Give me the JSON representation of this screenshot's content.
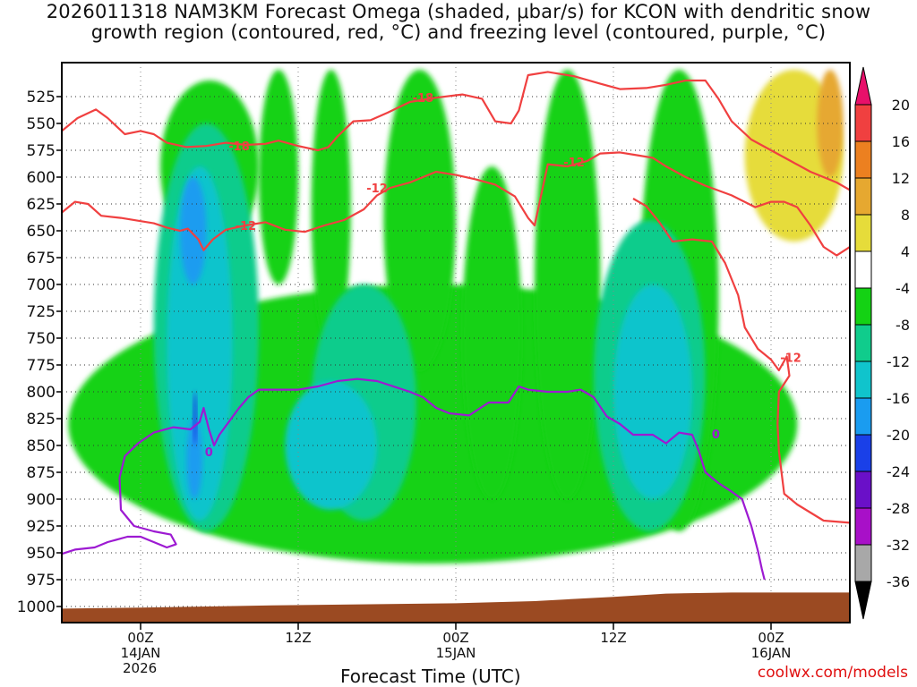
{
  "title_lines": [
    "2026011318 NAM3KM Forecast Omega (shaded, μbar/s) for KCON with dendritic snow",
    "growth region (contoured, red, °C) and freezing level (contoured, purple, °C)"
  ],
  "credit": "coolwx.com/models",
  "chart_data": {
    "type": "heatmap",
    "title": "2026011318 NAM3KM Forecast Omega (shaded, μbar/s) for KCON with dendritic snow growth region (contoured, red, °C) and freezing level (contoured, purple, °C)",
    "xlabel": "Forecast Time (UTC)",
    "ylabel": "",
    "x_unit": "hours since 2026-01-13 18Z",
    "xlim": [
      -6,
      54
    ],
    "x_ticks": [
      {
        "hour": 0,
        "lines": [
          "00Z",
          "14JAN"
        ]
      },
      {
        "hour": 12,
        "lines": [
          "12Z"
        ]
      },
      {
        "hour": 24,
        "lines": [
          "00Z",
          "15JAN"
        ]
      },
      {
        "hour": 36,
        "lines": [
          "12Z"
        ]
      },
      {
        "hour": 48,
        "lines": [
          "00Z",
          "16JAN"
        ]
      }
    ],
    "year_label": "2026",
    "y_unit": "hPa",
    "y_range": [
      1005,
      500
    ],
    "y_ticks": [
      525,
      550,
      575,
      600,
      625,
      650,
      675,
      700,
      725,
      750,
      775,
      800,
      825,
      850,
      875,
      900,
      925,
      950,
      975,
      1000
    ],
    "grid": "dotted",
    "colorbar": {
      "unit": "μbar/s",
      "labels": [
        20,
        16,
        12,
        8,
        4,
        -4,
        -8,
        -12,
        -16,
        -20,
        -24,
        -28,
        -32,
        -36
      ],
      "bins": [
        {
          "min": 20,
          "max": null,
          "color": "#e8106a"
        },
        {
          "min": 16,
          "max": 20,
          "color": "#f04040"
        },
        {
          "min": 12,
          "max": 16,
          "color": "#ec8020"
        },
        {
          "min": 8,
          "max": 12,
          "color": "#e6a830"
        },
        {
          "min": 4,
          "max": 8,
          "color": "#e6dc3a"
        },
        {
          "min": -4,
          "max": 4,
          "color": "#ffffff"
        },
        {
          "min": -8,
          "max": -4,
          "color": "#14d214"
        },
        {
          "min": -12,
          "max": -8,
          "color": "#10cc8c"
        },
        {
          "min": -16,
          "max": -12,
          "color": "#10c4cc"
        },
        {
          "min": -20,
          "max": -16,
          "color": "#1a9cf0"
        },
        {
          "min": -24,
          "max": -20,
          "color": "#1a40e8"
        },
        {
          "min": -28,
          "max": -24,
          "color": "#6a10c8"
        },
        {
          "min": -32,
          "max": -28,
          "color": "#a810c8"
        },
        {
          "min": -36,
          "max": -32,
          "color": "#a8a8a8"
        },
        {
          "min": null,
          "max": -36,
          "color": "#000000"
        }
      ]
    },
    "omega_regions": [
      {
        "value_range": [
          -8,
          -4
        ],
        "x": [
          1.5,
          9
        ],
        "p": [
          510,
          670
        ],
        "description_level": "green"
      },
      {
        "value_range": [
          -8,
          -4
        ],
        "x": [
          -5.5,
          50
        ],
        "p": [
          700,
          960
        ]
      },
      {
        "value_range": [
          -8,
          -4
        ],
        "x": [
          9,
          12
        ],
        "p": [
          500,
          700
        ]
      },
      {
        "value_range": [
          -8,
          -4
        ],
        "x": [
          13,
          16
        ],
        "p": [
          500,
          760
        ]
      },
      {
        "value_range": [
          -8,
          -4
        ],
        "x": [
          18.5,
          24
        ],
        "p": [
          500,
          780
        ]
      },
      {
        "value_range": [
          -8,
          -4
        ],
        "x": [
          24.5,
          29
        ],
        "p": [
          590,
          900
        ]
      },
      {
        "value_range": [
          -8,
          -4
        ],
        "x": [
          30,
          35
        ],
        "p": [
          500,
          900
        ]
      },
      {
        "value_range": [
          -8,
          -4
        ],
        "x": [
          38,
          44
        ],
        "p": [
          500,
          930
        ]
      },
      {
        "value_range": [
          -12,
          -8
        ],
        "x": [
          1,
          9
        ],
        "p": [
          550,
          930
        ]
      },
      {
        "value_range": [
          -12,
          -8
        ],
        "x": [
          13,
          21
        ],
        "p": [
          700,
          920
        ]
      },
      {
        "value_range": [
          -12,
          -8
        ],
        "x": [
          34.5,
          43
        ],
        "p": [
          640,
          930
        ]
      },
      {
        "value_range": [
          -16,
          -12
        ],
        "x": [
          2,
          7
        ],
        "p": [
          590,
          920
        ]
      },
      {
        "value_range": [
          -16,
          -12
        ],
        "x": [
          11,
          18
        ],
        "p": [
          790,
          910
        ]
      },
      {
        "value_range": [
          -16,
          -12
        ],
        "x": [
          36,
          42
        ],
        "p": [
          700,
          900
        ]
      },
      {
        "value_range": [
          -20,
          -16
        ],
        "x": [
          3,
          5
        ],
        "p": [
          600,
          700
        ]
      },
      {
        "value_range": [
          -20,
          -16
        ],
        "x": [
          3.5,
          4.7
        ],
        "p": [
          825,
          900
        ]
      },
      {
        "value_range": [
          -24,
          -20
        ],
        "x": [
          4.0,
          4.3
        ],
        "p": [
          800,
          850
        ]
      },
      {
        "value_range": [
          4,
          8
        ],
        "x": [
          46,
          53.5
        ],
        "p": [
          500,
          660
        ]
      },
      {
        "value_range": [
          8,
          12
        ],
        "x": [
          51.5,
          53.5
        ],
        "p": [
          500,
          600
        ]
      }
    ],
    "series": [
      {
        "name": "-18",
        "color": "#f04040",
        "points": [
          [
            -6,
            557
          ],
          [
            -4.8,
            545
          ],
          [
            -3.4,
            537
          ],
          [
            -2.5,
            545
          ],
          [
            -1.2,
            560
          ],
          [
            0,
            557
          ],
          [
            1,
            560
          ],
          [
            2,
            568
          ],
          [
            3.5,
            572
          ],
          [
            5,
            571
          ],
          [
            6.5,
            568
          ],
          [
            8,
            570
          ],
          [
            9.5,
            569
          ],
          [
            10.5,
            566
          ],
          [
            12,
            571
          ],
          [
            13.5,
            575
          ],
          [
            14.3,
            572
          ],
          [
            15,
            562
          ],
          [
            16.2,
            548
          ],
          [
            17.5,
            547
          ],
          [
            18.8,
            540
          ],
          [
            20.5,
            530
          ],
          [
            22.5,
            526
          ],
          [
            24.5,
            523
          ],
          [
            26,
            527
          ],
          [
            27,
            548
          ],
          [
            28.2,
            550
          ],
          [
            28.8,
            538
          ],
          [
            29.5,
            505
          ],
          [
            31,
            502
          ],
          [
            33,
            506
          ],
          [
            35,
            513
          ],
          [
            36.5,
            518
          ],
          [
            38.5,
            517
          ],
          [
            40,
            514
          ],
          [
            41.5,
            510
          ],
          [
            43,
            510
          ],
          [
            44,
            527
          ],
          [
            45,
            548
          ],
          [
            46.5,
            565
          ],
          [
            48,
            575
          ],
          [
            49.5,
            585
          ],
          [
            51,
            595
          ],
          [
            52,
            600
          ],
          [
            53,
            605
          ],
          [
            54,
            612
          ]
        ]
      },
      {
        "name": "-12",
        "color": "#f04040",
        "points": [
          [
            -6,
            633
          ],
          [
            -5,
            623
          ],
          [
            -4,
            625
          ],
          [
            -3,
            636
          ],
          [
            -1.5,
            638
          ],
          [
            0,
            641
          ],
          [
            1,
            643
          ],
          [
            2,
            647
          ],
          [
            3,
            650
          ],
          [
            3.6,
            648
          ],
          [
            4.4,
            658
          ],
          [
            4.8,
            668
          ],
          [
            5.5,
            658
          ],
          [
            6.5,
            649
          ],
          [
            8,
            645
          ],
          [
            9.5,
            642
          ],
          [
            11,
            649
          ],
          [
            12.5,
            651
          ],
          [
            14,
            645
          ],
          [
            15.5,
            640
          ],
          [
            17,
            630
          ],
          [
            18,
            617
          ],
          [
            19,
            610
          ],
          [
            20.5,
            605
          ],
          [
            22.5,
            595
          ],
          [
            24,
            598
          ],
          [
            25.5,
            602
          ],
          [
            27,
            607
          ],
          [
            28.5,
            618
          ],
          [
            29.5,
            638
          ],
          [
            30,
            645
          ],
          [
            31,
            588
          ],
          [
            32.5,
            590
          ],
          [
            34,
            585
          ],
          [
            35,
            578
          ],
          [
            36.5,
            577
          ],
          [
            38,
            580
          ],
          [
            39,
            582
          ],
          [
            40,
            590
          ],
          [
            41.5,
            600
          ],
          [
            43,
            608
          ],
          [
            45,
            617
          ],
          [
            46.8,
            628
          ],
          [
            48,
            623
          ],
          [
            49,
            623
          ],
          [
            50,
            628
          ],
          [
            51,
            645
          ],
          [
            52,
            665
          ],
          [
            53,
            673
          ],
          [
            54,
            665
          ]
        ]
      },
      {
        "name": "-12",
        "color": "#f04040",
        "points": [
          [
            37.5,
            620
          ],
          [
            38.5,
            627
          ],
          [
            39.5,
            642
          ],
          [
            40.5,
            660
          ],
          [
            42,
            658
          ],
          [
            43.5,
            660
          ],
          [
            44.5,
            680
          ],
          [
            45.5,
            710
          ],
          [
            46,
            740
          ],
          [
            47,
            760
          ],
          [
            48,
            770
          ],
          [
            48.6,
            780
          ],
          [
            49.2,
            767
          ],
          [
            49.4,
            785
          ],
          [
            48.6,
            800
          ],
          [
            48.5,
            830
          ],
          [
            48.6,
            855
          ],
          [
            48.8,
            875
          ],
          [
            49,
            895
          ],
          [
            50,
            905
          ],
          [
            52,
            920
          ],
          [
            54,
            922
          ]
        ]
      },
      {
        "name": "0",
        "color": "#9d1ad2",
        "points": [
          [
            -6,
            951
          ],
          [
            -5,
            947
          ],
          [
            -3.5,
            945
          ],
          [
            -2.5,
            940
          ],
          [
            -1,
            935
          ],
          [
            0,
            935
          ],
          [
            1,
            940
          ],
          [
            2,
            945
          ],
          [
            2.7,
            942
          ],
          [
            2.3,
            933
          ],
          [
            1,
            930
          ],
          [
            -0.5,
            925
          ],
          [
            -1.5,
            910
          ],
          [
            -1.6,
            880
          ],
          [
            -1.2,
            860
          ],
          [
            -0.2,
            848
          ],
          [
            1,
            838
          ],
          [
            2.5,
            833
          ],
          [
            3.8,
            835
          ],
          [
            4.5,
            828
          ],
          [
            4.8,
            815
          ],
          [
            5.2,
            835
          ],
          [
            5.6,
            850
          ],
          [
            6,
            840
          ],
          [
            6.6,
            830
          ],
          [
            7.5,
            815
          ],
          [
            8.2,
            805
          ],
          [
            9,
            798
          ],
          [
            10.5,
            798
          ],
          [
            12,
            798
          ],
          [
            13.5,
            795
          ],
          [
            15,
            790
          ],
          [
            16.5,
            788
          ],
          [
            18,
            790
          ],
          [
            19.5,
            796
          ],
          [
            20.5,
            800
          ],
          [
            21.5,
            805
          ],
          [
            22.5,
            815
          ],
          [
            23.5,
            820
          ],
          [
            25,
            822
          ],
          [
            26.5,
            810
          ],
          [
            28,
            810
          ],
          [
            28.8,
            795
          ],
          [
            29.5,
            798
          ],
          [
            31,
            800
          ],
          [
            32.5,
            800
          ],
          [
            33.5,
            798
          ],
          [
            34.5,
            805
          ],
          [
            35.5,
            823
          ],
          [
            36.5,
            830
          ],
          [
            37.5,
            840
          ],
          [
            39,
            840
          ],
          [
            40,
            848
          ],
          [
            41,
            838
          ],
          [
            42,
            840
          ],
          [
            42.5,
            855
          ],
          [
            43,
            875
          ],
          [
            44,
            885
          ],
          [
            45,
            893
          ],
          [
            45.8,
            900
          ],
          [
            46.5,
            925
          ],
          [
            47,
            948
          ],
          [
            47.3,
            965
          ],
          [
            47.5,
            975
          ]
        ]
      }
    ],
    "contour_labels": [
      {
        "text": "-18",
        "x": 21.5,
        "p": 526
      },
      {
        "text": "-18",
        "x": 7.5,
        "p": 571
      },
      {
        "text": "-12",
        "x": 8.0,
        "p": 645
      },
      {
        "text": "-12",
        "x": 18.0,
        "p": 610
      },
      {
        "text": "-12",
        "x": 33.0,
        "p": 586
      },
      {
        "text": "-12",
        "x": 49.5,
        "p": 768
      },
      {
        "text": "0",
        "x": 5.2,
        "p": 856
      },
      {
        "text": "0",
        "x": 43.8,
        "p": 839
      }
    ],
    "terrain": {
      "color": "#9b4a22",
      "points": [
        [
          -6,
          1002
        ],
        [
          0,
          1001
        ],
        [
          10,
          999
        ],
        [
          24,
          997
        ],
        [
          30,
          995
        ],
        [
          36,
          991
        ],
        [
          40,
          988
        ],
        [
          45,
          987
        ],
        [
          50,
          987
        ],
        [
          54,
          987
        ]
      ]
    }
  }
}
